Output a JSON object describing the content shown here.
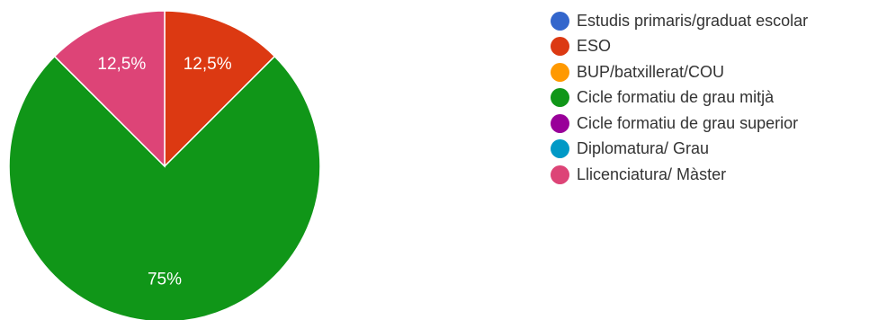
{
  "chart_data": {
    "type": "pie",
    "title": "",
    "categories": [
      "Estudis primaris/graduat escolar",
      "ESO",
      "BUP/batxillerat/COU",
      "Cicle formatiu de grau mitjà",
      "Cicle formatiu de grau superior",
      "Diplomatura/ Grau",
      "Llicenciatura/ Màster"
    ],
    "values": [
      0,
      12.5,
      0,
      75,
      0,
      0,
      12.5
    ],
    "colors": [
      "#3366cc",
      "#dc3912",
      "#ff9900",
      "#109618",
      "#990099",
      "#0099c6",
      "#dd4477"
    ],
    "data_labels": [
      "",
      "12,5%",
      "",
      "75%",
      "",
      "",
      "12,5%"
    ],
    "legend_position": "right",
    "start_angle_deg": 90,
    "direction": "clockwise"
  }
}
